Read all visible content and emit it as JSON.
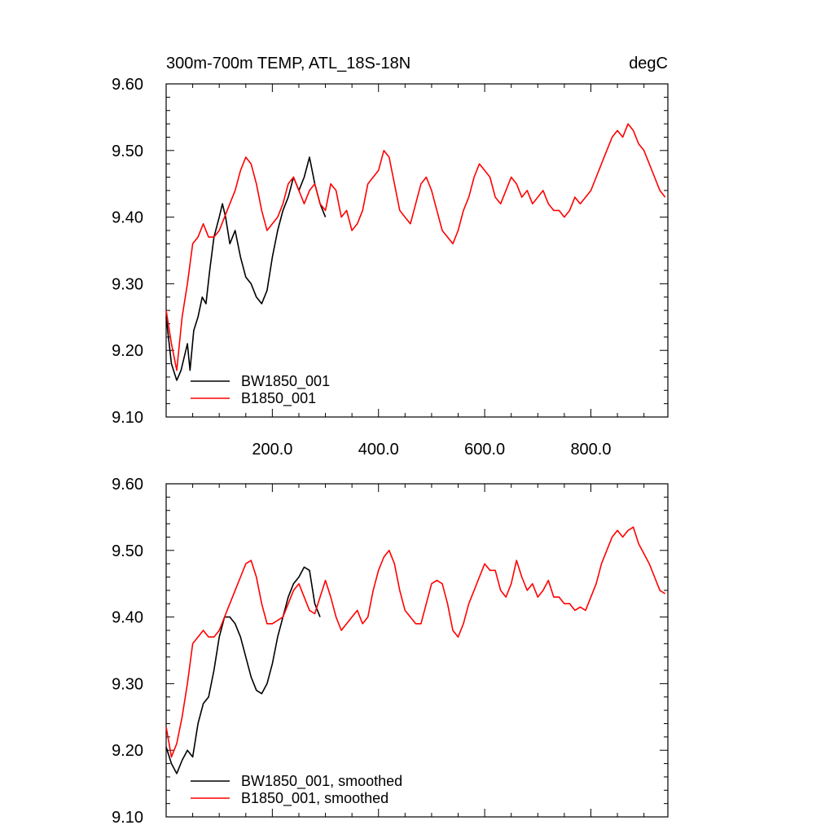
{
  "chart_data": [
    {
      "type": "line",
      "title": "300m-700m TEMP, ATL_18S-18N",
      "units": "degC",
      "xlim": [
        0,
        945
      ],
      "ylim": [
        9.1,
        9.6
      ],
      "xticks": [
        200,
        400,
        600,
        800
      ],
      "xtick_labels": [
        "200.0",
        "400.0",
        "600.0",
        "800.0"
      ],
      "yticks": [
        9.1,
        9.2,
        9.3,
        9.4,
        9.5,
        9.6
      ],
      "ytick_labels": [
        "9.10",
        "9.20",
        "9.30",
        "9.40",
        "9.50",
        "9.60"
      ],
      "grid": false,
      "legend_position": "bottom-left",
      "series": [
        {
          "name": "BW1850_001",
          "color": "#000000",
          "x": [
            0,
            10,
            20,
            28,
            40,
            45,
            52,
            60,
            68,
            75,
            82,
            90,
            100,
            106,
            112,
            120,
            130,
            140,
            150,
            160,
            170,
            180,
            190,
            200,
            210,
            220,
            230,
            240,
            250,
            260,
            270,
            280,
            290,
            300
          ],
          "y": [
            9.25,
            9.18,
            9.155,
            9.17,
            9.21,
            9.17,
            9.23,
            9.25,
            9.28,
            9.27,
            9.32,
            9.37,
            9.4,
            9.42,
            9.4,
            9.36,
            9.38,
            9.34,
            9.31,
            9.3,
            9.28,
            9.27,
            9.29,
            9.34,
            9.38,
            9.41,
            9.43,
            9.46,
            9.44,
            9.46,
            9.49,
            9.45,
            9.42,
            9.4
          ]
        },
        {
          "name": "B1850_001",
          "color": "#ff0000",
          "x": [
            0,
            10,
            20,
            30,
            40,
            50,
            60,
            70,
            80,
            90,
            100,
            110,
            120,
            130,
            140,
            150,
            160,
            170,
            180,
            190,
            200,
            210,
            220,
            230,
            240,
            250,
            260,
            270,
            280,
            290,
            300,
            310,
            320,
            330,
            340,
            350,
            360,
            370,
            380,
            390,
            400,
            410,
            420,
            430,
            440,
            450,
            460,
            470,
            480,
            490,
            500,
            510,
            520,
            530,
            540,
            550,
            560,
            570,
            580,
            590,
            600,
            610,
            620,
            630,
            640,
            650,
            660,
            670,
            680,
            690,
            700,
            710,
            720,
            730,
            740,
            750,
            760,
            770,
            780,
            790,
            800,
            810,
            820,
            830,
            840,
            850,
            860,
            870,
            880,
            890,
            900,
            910,
            920,
            930,
            940
          ],
          "y": [
            9.26,
            9.21,
            9.17,
            9.25,
            9.3,
            9.36,
            9.37,
            9.39,
            9.37,
            9.37,
            9.38,
            9.4,
            9.42,
            9.44,
            9.47,
            9.49,
            9.48,
            9.45,
            9.41,
            9.38,
            9.39,
            9.4,
            9.42,
            9.45,
            9.46,
            9.44,
            9.42,
            9.44,
            9.45,
            9.42,
            9.41,
            9.45,
            9.44,
            9.4,
            9.41,
            9.38,
            9.39,
            9.41,
            9.45,
            9.46,
            9.47,
            9.5,
            9.49,
            9.45,
            9.41,
            9.4,
            9.39,
            9.42,
            9.45,
            9.46,
            9.44,
            9.41,
            9.38,
            9.37,
            9.36,
            9.38,
            9.41,
            9.43,
            9.46,
            9.48,
            9.47,
            9.46,
            9.43,
            9.42,
            9.44,
            9.46,
            9.45,
            9.43,
            9.44,
            9.42,
            9.43,
            9.44,
            9.42,
            9.41,
            9.41,
            9.4,
            9.41,
            9.43,
            9.42,
            9.43,
            9.44,
            9.46,
            9.48,
            9.5,
            9.52,
            9.53,
            9.52,
            9.54,
            9.53,
            9.51,
            9.5,
            9.48,
            9.46,
            9.44,
            9.43
          ]
        }
      ],
      "legend": [
        "BW1850_001",
        "B1850_001"
      ]
    },
    {
      "type": "line",
      "xlim": [
        0,
        945
      ],
      "ylim": [
        9.1,
        9.6
      ],
      "xticks": [
        200,
        400,
        600,
        800
      ],
      "yticks": [
        9.1,
        9.2,
        9.3,
        9.4,
        9.5,
        9.6
      ],
      "ytick_labels": [
        "9.10",
        "9.20",
        "9.30",
        "9.40",
        "9.50",
        "9.60"
      ],
      "grid": false,
      "legend_position": "bottom-left",
      "series": [
        {
          "name": "BW1850_001, smoothed",
          "color": "#000000",
          "x": [
            0,
            10,
            20,
            30,
            40,
            50,
            60,
            70,
            80,
            90,
            100,
            110,
            120,
            130,
            140,
            150,
            160,
            170,
            180,
            190,
            200,
            210,
            220,
            230,
            240,
            250,
            260,
            270,
            280,
            290
          ],
          "y": [
            9.205,
            9.18,
            9.165,
            9.185,
            9.2,
            9.19,
            9.24,
            9.27,
            9.28,
            9.32,
            9.37,
            9.4,
            9.4,
            9.39,
            9.37,
            9.34,
            9.31,
            9.29,
            9.285,
            9.3,
            9.33,
            9.37,
            9.4,
            9.43,
            9.45,
            9.46,
            9.475,
            9.47,
            9.42,
            9.4
          ]
        },
        {
          "name": "B1850_001, smoothed",
          "color": "#ff0000",
          "x": [
            0,
            10,
            20,
            30,
            40,
            50,
            60,
            70,
            80,
            90,
            100,
            110,
            120,
            130,
            140,
            150,
            160,
            170,
            180,
            190,
            200,
            210,
            220,
            230,
            240,
            250,
            260,
            270,
            280,
            290,
            300,
            310,
            320,
            330,
            340,
            350,
            360,
            370,
            380,
            390,
            400,
            410,
            420,
            430,
            440,
            450,
            460,
            470,
            480,
            490,
            500,
            510,
            520,
            530,
            540,
            550,
            560,
            570,
            580,
            590,
            600,
            610,
            620,
            630,
            640,
            650,
            660,
            670,
            680,
            690,
            700,
            710,
            720,
            730,
            740,
            750,
            760,
            770,
            780,
            790,
            800,
            810,
            820,
            830,
            840,
            850,
            860,
            870,
            880,
            890,
            900,
            910,
            920,
            930,
            940
          ],
          "y": [
            9.235,
            9.19,
            9.21,
            9.25,
            9.3,
            9.36,
            9.37,
            9.38,
            9.37,
            9.37,
            9.38,
            9.4,
            9.42,
            9.44,
            9.46,
            9.48,
            9.485,
            9.46,
            9.42,
            9.39,
            9.39,
            9.395,
            9.4,
            9.42,
            9.44,
            9.45,
            9.43,
            9.41,
            9.405,
            9.43,
            9.455,
            9.43,
            9.4,
            9.38,
            9.39,
            9.4,
            9.41,
            9.39,
            9.4,
            9.44,
            9.47,
            9.49,
            9.5,
            9.48,
            9.44,
            9.41,
            9.4,
            9.39,
            9.39,
            9.42,
            9.45,
            9.455,
            9.45,
            9.42,
            9.38,
            9.37,
            9.39,
            9.42,
            9.44,
            9.46,
            9.48,
            9.47,
            9.47,
            9.44,
            9.43,
            9.45,
            9.485,
            9.46,
            9.44,
            9.45,
            9.43,
            9.44,
            9.455,
            9.43,
            9.43,
            9.42,
            9.42,
            9.41,
            9.415,
            9.41,
            9.43,
            9.45,
            9.48,
            9.5,
            9.52,
            9.53,
            9.52,
            9.53,
            9.535,
            9.51,
            9.495,
            9.48,
            9.46,
            9.44,
            9.435
          ]
        }
      ],
      "legend": [
        "BW1850_001, smoothed",
        "B1850_001, smoothed"
      ]
    }
  ]
}
